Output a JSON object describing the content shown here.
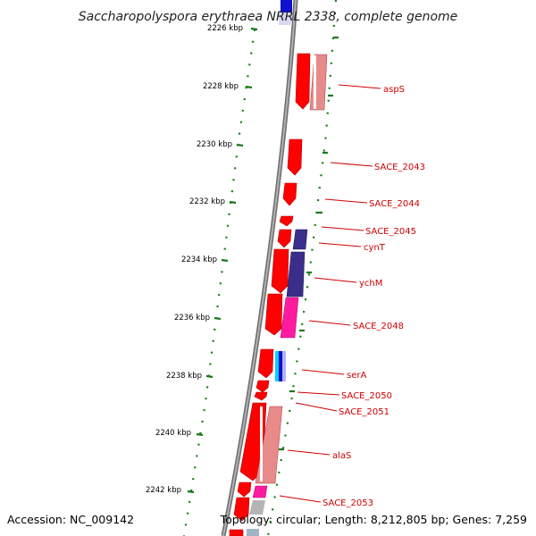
{
  "title": "Saccharopolyspora erythraea NRRL 2338, complete genome",
  "footer": {
    "accession": "Accession: NC_009142",
    "summary": "Topology: circular; Length: 8,212,805 bp; Genes: 7,259"
  },
  "kbp_ticks": [
    "2226 kbp",
    "2228 kbp",
    "2230 kbp",
    "2232 kbp",
    "2234 kbp",
    "2236 kbp",
    "2238 kbp",
    "2240 kbp",
    "2242 kbp"
  ],
  "genes": [
    "aspS",
    "SACE_2043",
    "SACE_2044",
    "SACE_2045",
    "cynT",
    "ychM",
    "SACE_2048",
    "serA",
    "SACE_2050",
    "SACE_2051",
    "alaS",
    "SACE_2053"
  ],
  "colors": {
    "cds": "#ff0000",
    "backbone": "#8c8c8c",
    "tick_ring": "#1a7a1a",
    "label": "#d00000",
    "cog_pink": "#e88a8a",
    "cog_navy": "#3a2e8a",
    "cog_magenta": "#ff1aa0",
    "cog_grey": "#b4b4b4"
  }
}
